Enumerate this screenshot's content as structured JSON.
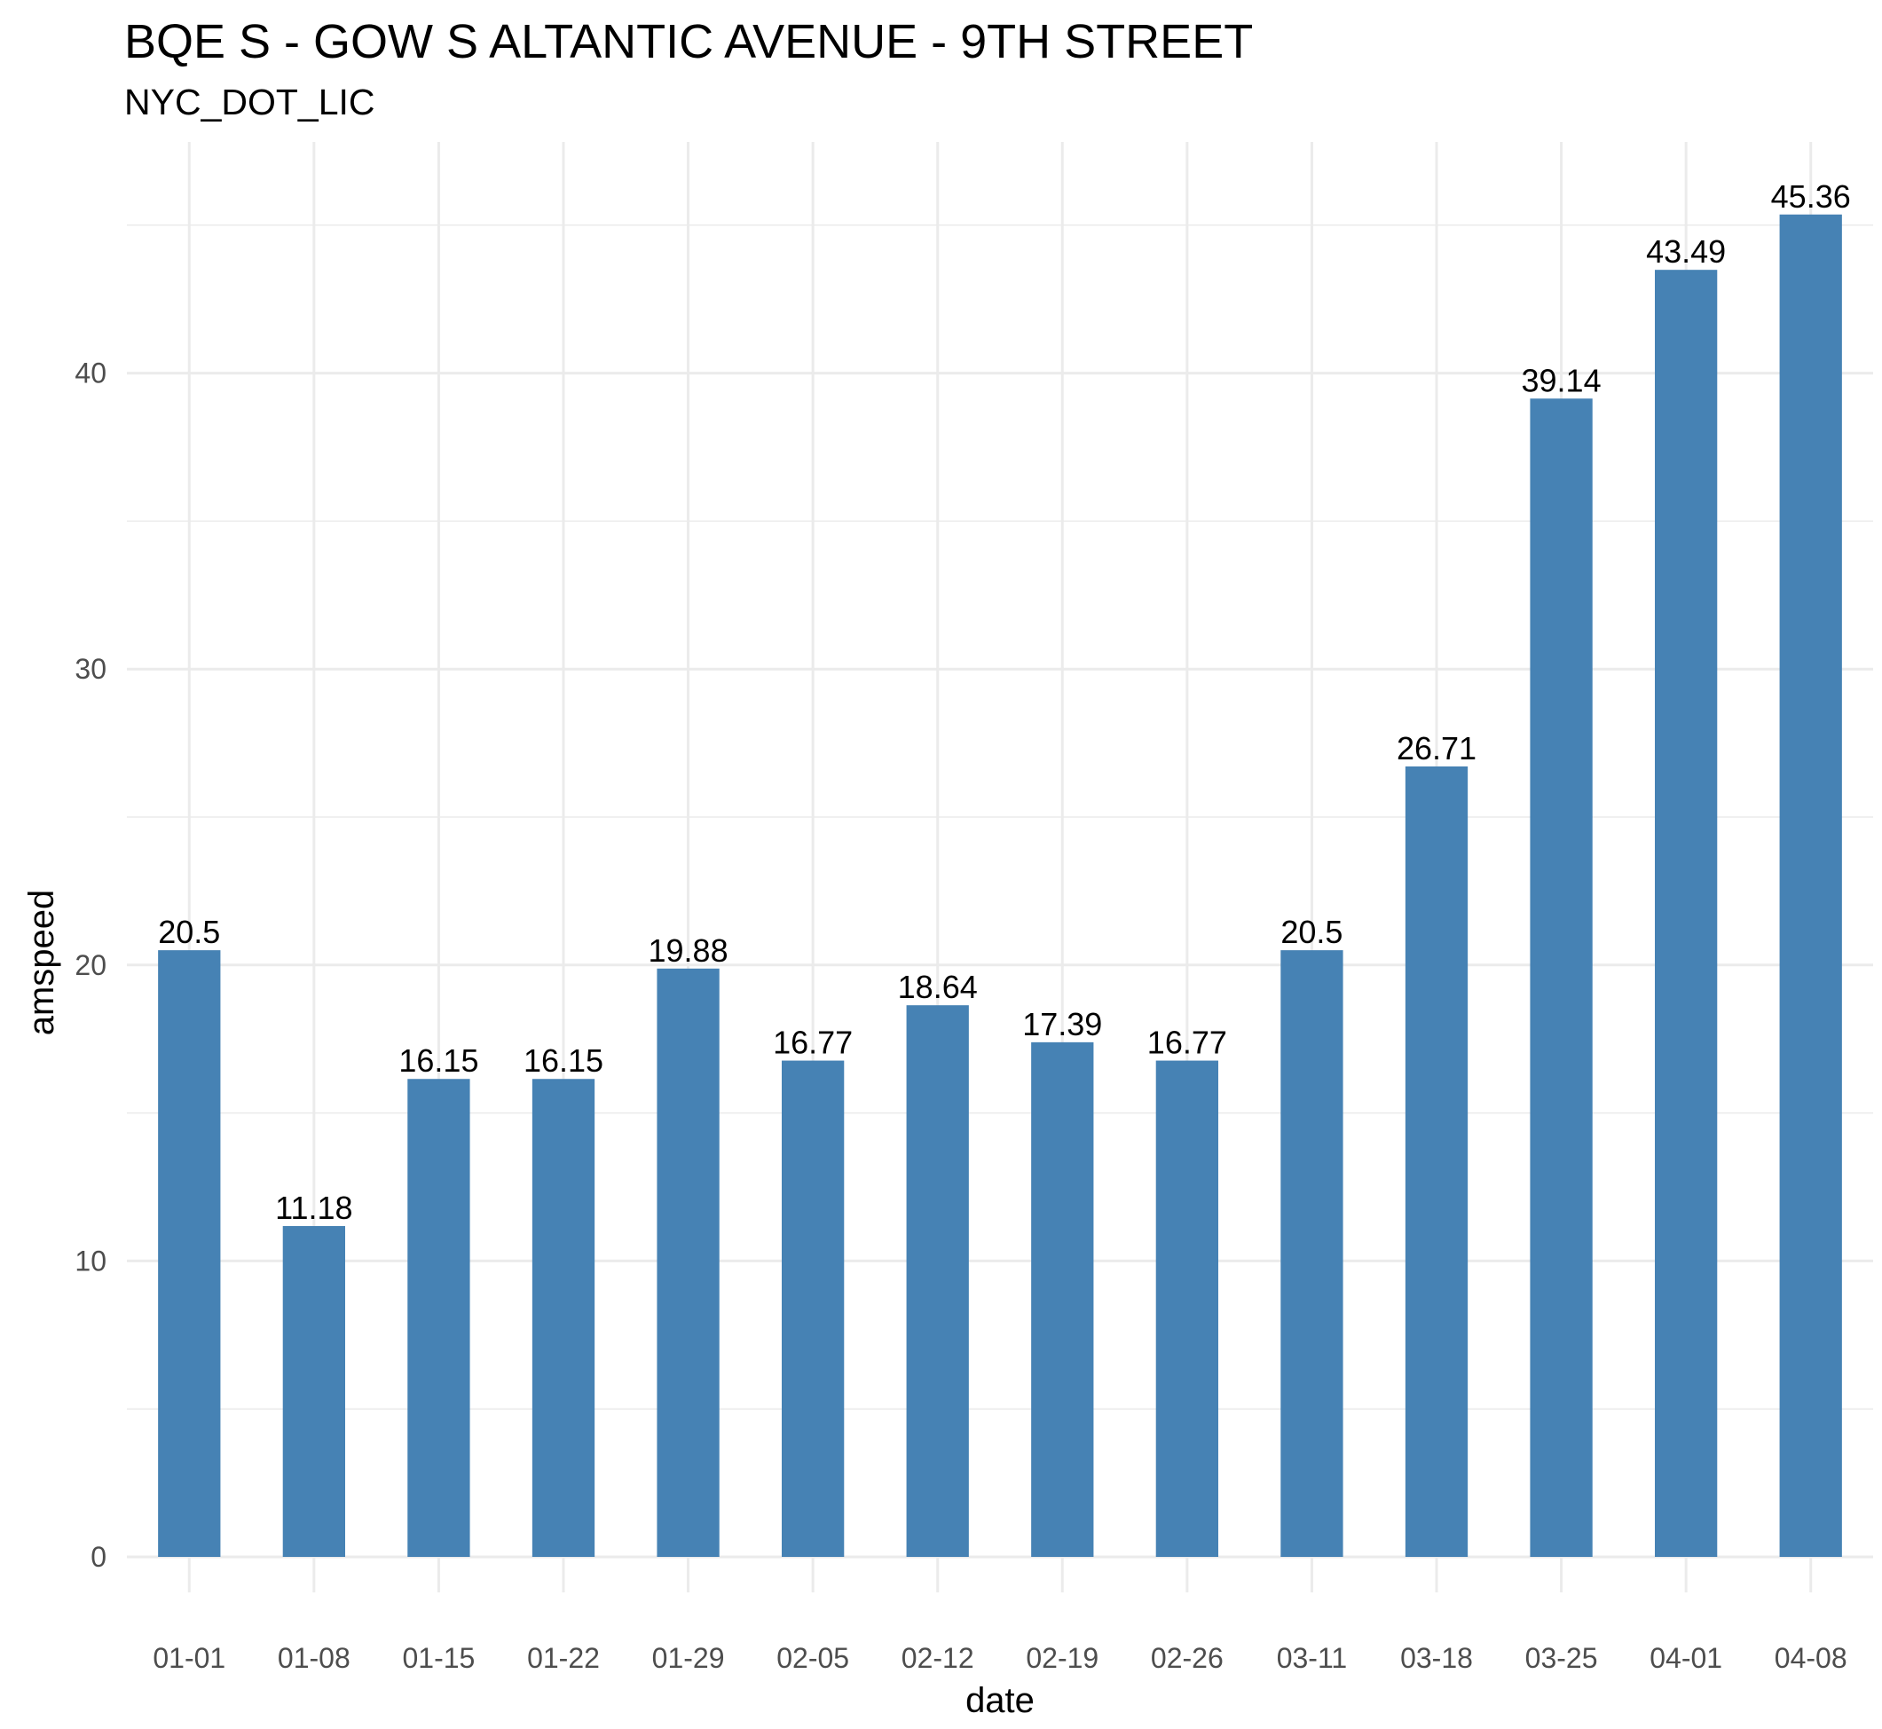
{
  "chart_data": {
    "type": "bar",
    "title": "BQE S - GOW S ALTANTIC AVENUE - 9TH STREET",
    "subtitle": "NYC_DOT_LIC",
    "xlabel": "date",
    "ylabel": "amspeed",
    "categories": [
      "01-01",
      "01-08",
      "01-15",
      "01-22",
      "01-29",
      "02-05",
      "02-12",
      "02-19",
      "02-26",
      "03-11",
      "03-18",
      "03-25",
      "04-01",
      "04-08"
    ],
    "values": [
      20.5,
      11.18,
      16.15,
      16.15,
      19.88,
      16.77,
      18.64,
      17.39,
      16.77,
      20.5,
      26.71,
      39.14,
      43.49,
      45.36
    ],
    "data_labels": [
      "20.5",
      "11.18",
      "16.15",
      "16.15",
      "19.88",
      "16.77",
      "18.64",
      "17.39",
      "16.77",
      "20.5",
      "26.71",
      "39.14",
      "43.49",
      "45.36"
    ],
    "y_ticks": [
      0,
      10,
      20,
      30,
      40
    ],
    "ylim": [
      0,
      47.6
    ],
    "grid": true,
    "legend": "none",
    "bar_color": "#4682B4",
    "grid_color": "#EBEBEB"
  }
}
